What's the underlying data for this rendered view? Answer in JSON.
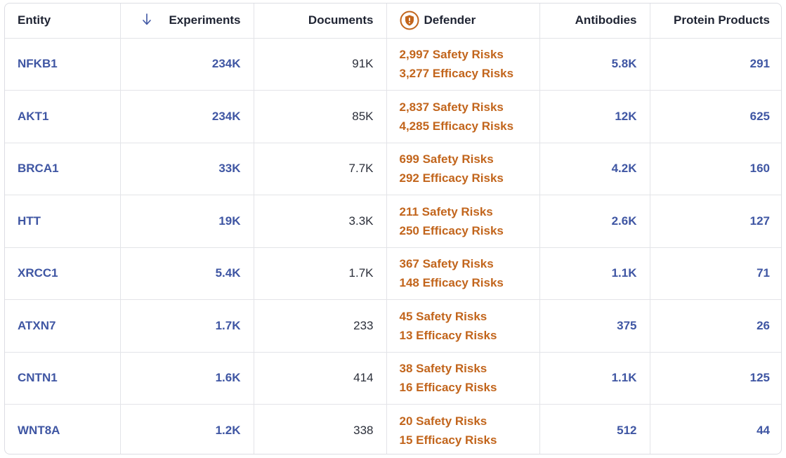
{
  "columns": {
    "entity": "Entity",
    "experiments": "Experiments",
    "documents": "Documents",
    "defender": "Defender",
    "antibodies": "Antibodies",
    "protein_products": "Protein Products"
  },
  "rows": [
    {
      "entity": "NFKB1",
      "experiments": "234K",
      "documents": "91K",
      "safety": "2,997 Safety Risks",
      "efficacy": "3,277 Efficacy Risks",
      "antibodies": "5.8K",
      "protein_products": "291"
    },
    {
      "entity": "AKT1",
      "experiments": "234K",
      "documents": "85K",
      "safety": "2,837 Safety Risks",
      "efficacy": "4,285 Efficacy Risks",
      "antibodies": "12K",
      "protein_products": "625"
    },
    {
      "entity": "BRCA1",
      "experiments": "33K",
      "documents": "7.7K",
      "safety": "699 Safety Risks",
      "efficacy": "292 Efficacy Risks",
      "antibodies": "4.2K",
      "protein_products": "160"
    },
    {
      "entity": "HTT",
      "experiments": "19K",
      "documents": "3.3K",
      "safety": "211 Safety Risks",
      "efficacy": "250 Efficacy Risks",
      "antibodies": "2.6K",
      "protein_products": "127"
    },
    {
      "entity": "XRCC1",
      "experiments": "5.4K",
      "documents": "1.7K",
      "safety": "367 Safety Risks",
      "efficacy": "148 Efficacy Risks",
      "antibodies": "1.1K",
      "protein_products": "71"
    },
    {
      "entity": "ATXN7",
      "experiments": "1.7K",
      "documents": "233",
      "safety": "45 Safety Risks",
      "efficacy": "13 Efficacy Risks",
      "antibodies": "375",
      "protein_products": "26"
    },
    {
      "entity": "CNTN1",
      "experiments": "1.6K",
      "documents": "414",
      "safety": "38 Safety Risks",
      "efficacy": "16 Efficacy Risks",
      "antibodies": "1.1K",
      "protein_products": "125"
    },
    {
      "entity": "WNT8A",
      "experiments": "1.2K",
      "documents": "338",
      "safety": "20 Safety Risks",
      "efficacy": "15 Efficacy Risks",
      "antibodies": "512",
      "protein_products": "44"
    }
  ],
  "icons": {
    "sort": "arrow-down-icon",
    "defender": "shield-icon"
  },
  "colors": {
    "link_blue": "#3f56a3",
    "risk_orange": "#c2651c",
    "header_text": "#1f2433",
    "border": "#e3e4e8"
  }
}
